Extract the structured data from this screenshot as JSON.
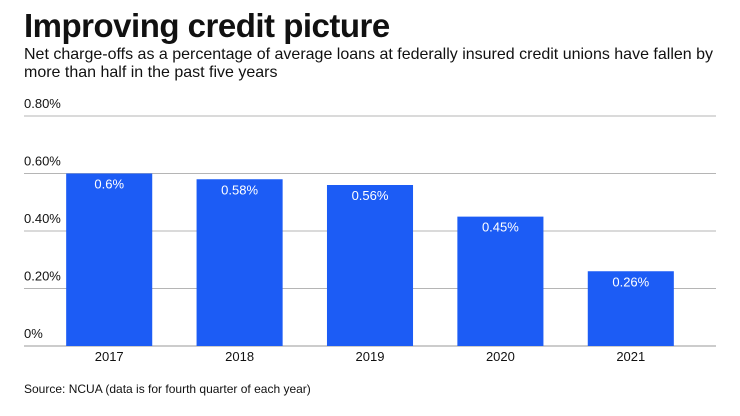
{
  "title": "Improving credit picture",
  "subtitle": "Net charge-offs as a percentage of average loans at federally insured credit unions have fallen by more than half in the past five years",
  "source": "Source: NCUA (data is for fourth quarter of each year)",
  "chart_data": {
    "type": "bar",
    "title": "Improving credit picture",
    "subtitle": "Net charge-offs as a percentage of average loans at federally insured credit unions have fallen by more than half in the past five years",
    "categories": [
      "2017",
      "2018",
      "2019",
      "2020",
      "2021"
    ],
    "values": [
      0.6,
      0.58,
      0.56,
      0.45,
      0.26
    ],
    "data_labels": [
      "0.6%",
      "0.58%",
      "0.56%",
      "0.45%",
      "0.26%"
    ],
    "y_ticks": [
      0,
      0.2,
      0.4,
      0.6,
      0.8
    ],
    "y_tick_labels": [
      "0%",
      "0.20%",
      "0.40%",
      "0.60%",
      "0.80%"
    ],
    "ylim": [
      0,
      0.8
    ],
    "xlabel": "",
    "ylabel": "",
    "grid": true,
    "legend": "none",
    "bar_color": "#1c5cf5",
    "grid_color": "#b5b5b5",
    "source": "Source: NCUA (data is for fourth quarter of each year)"
  }
}
